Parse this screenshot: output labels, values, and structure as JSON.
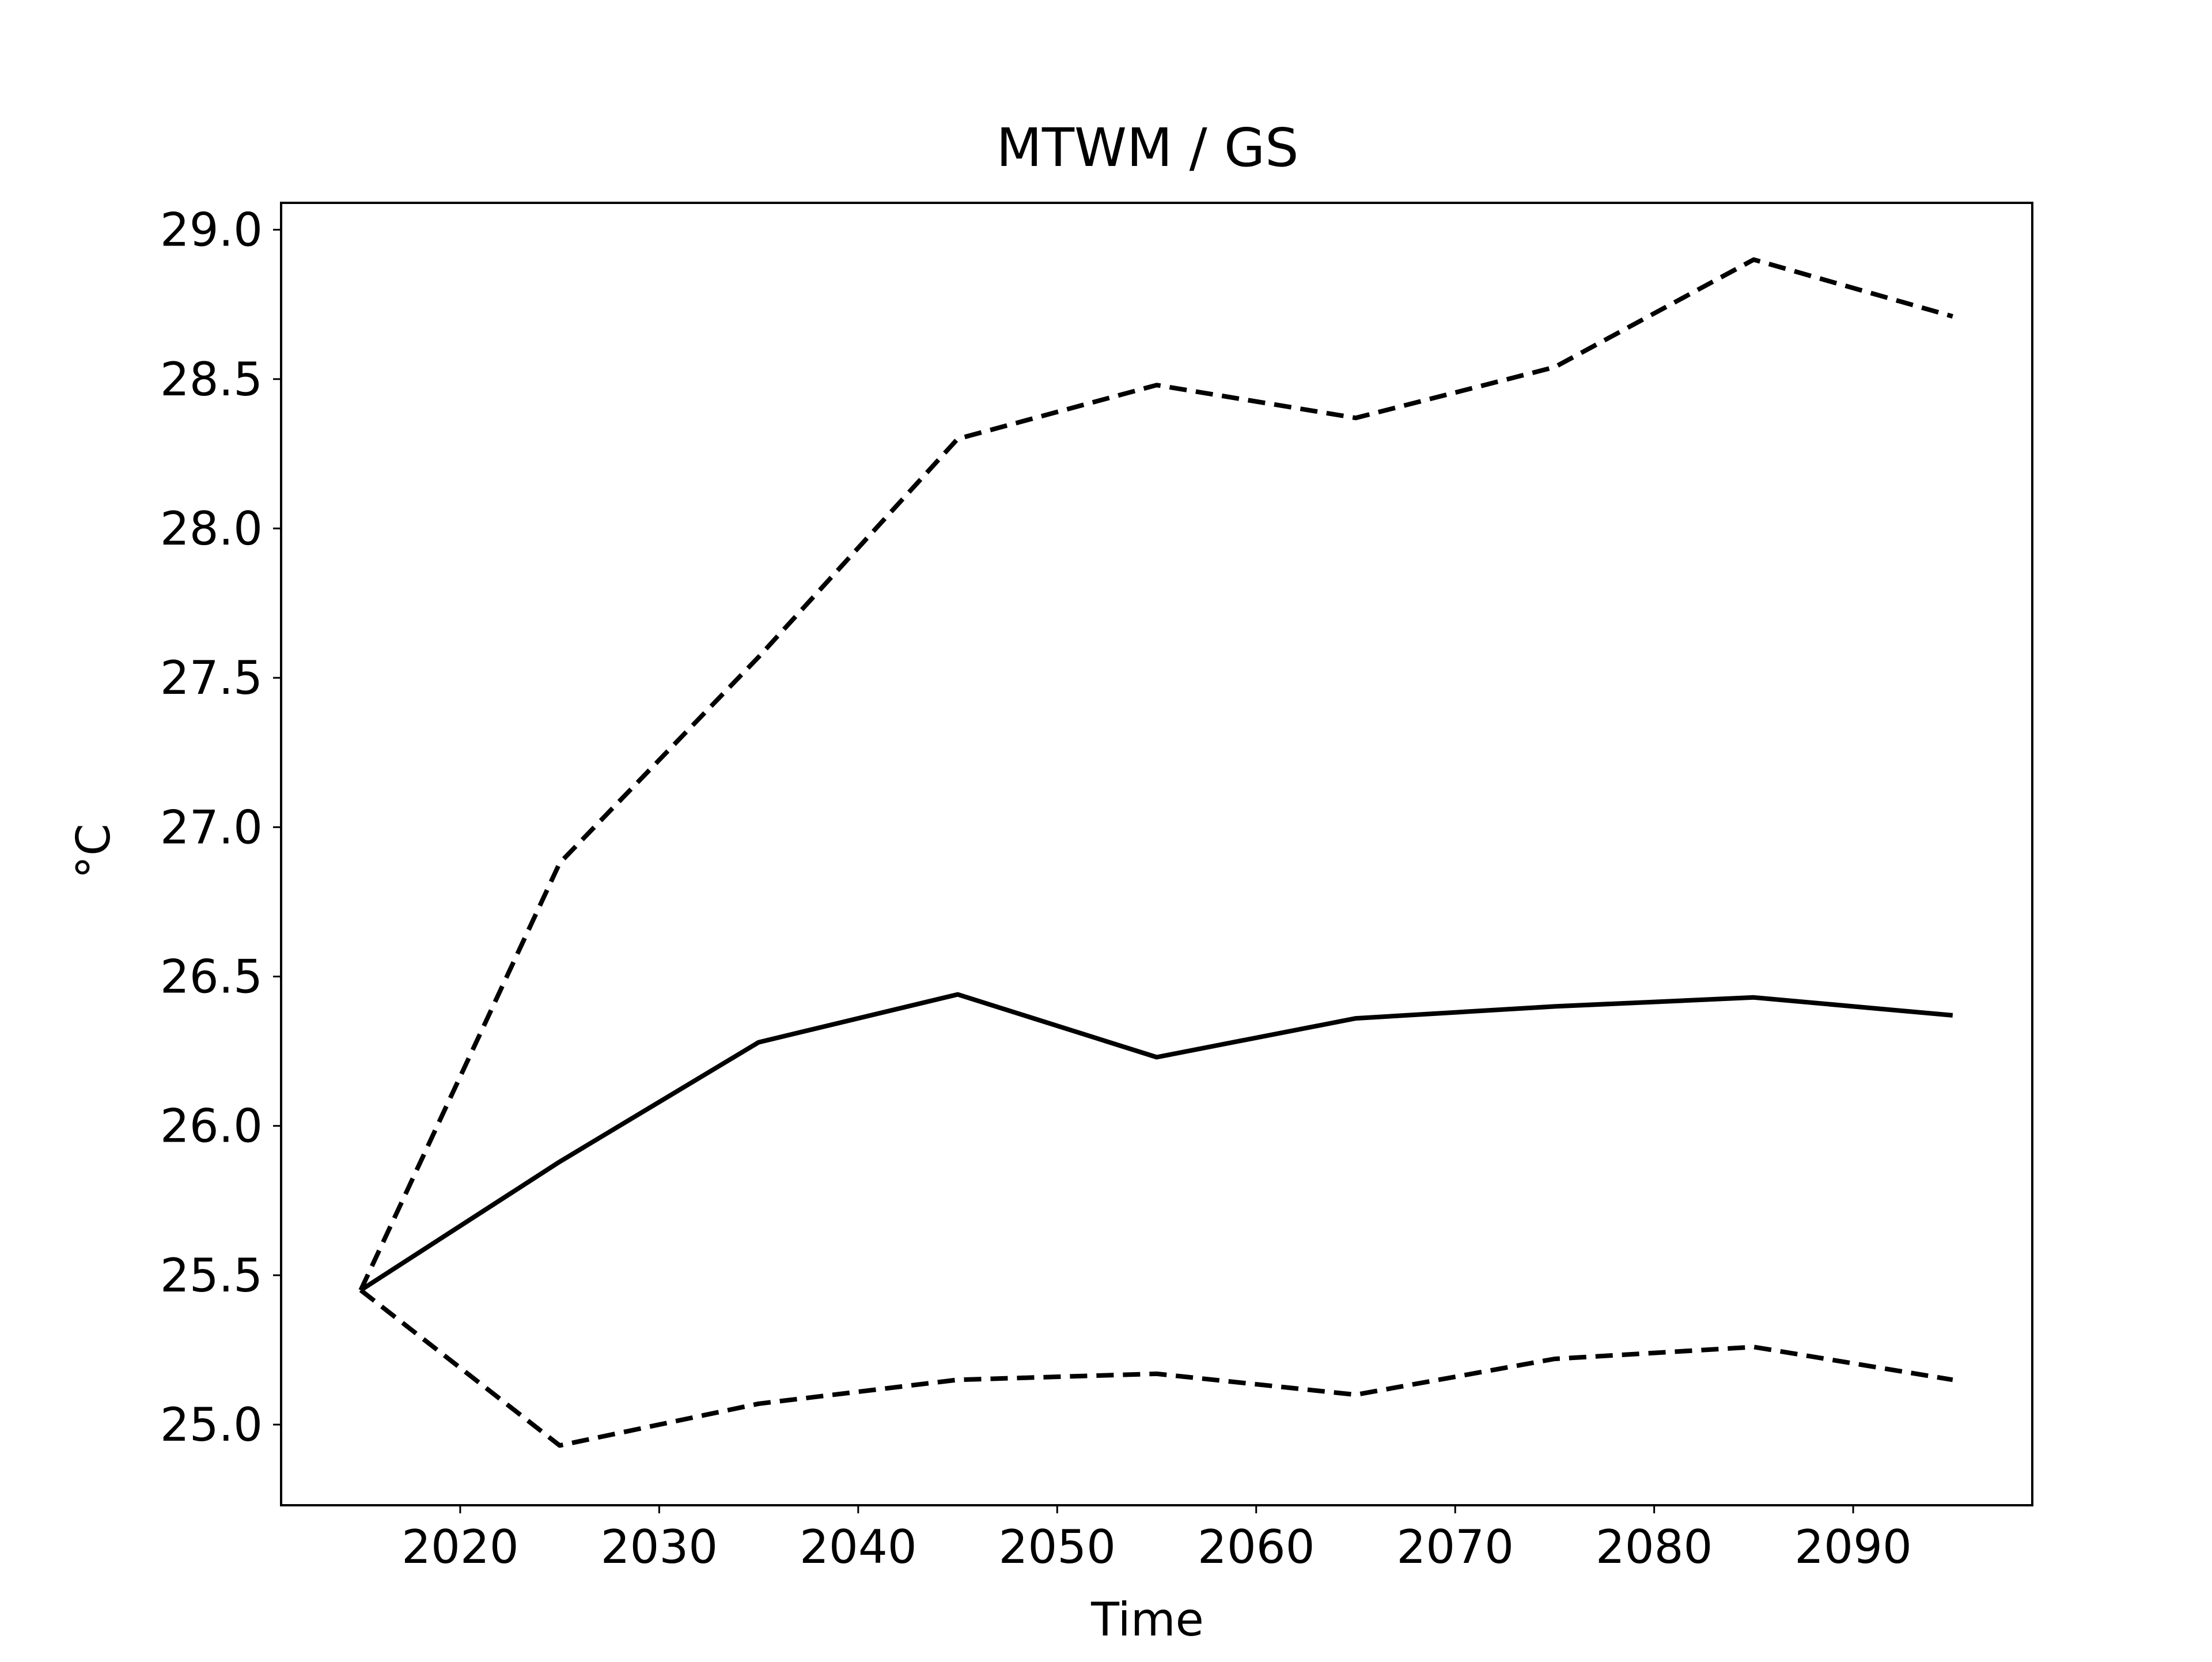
{
  "chart_data": {
    "type": "line",
    "title": "MTWM / GS",
    "xlabel": "Time",
    "ylabel": "°C",
    "x": [
      2015,
      2025,
      2035,
      2045,
      2055,
      2065,
      2075,
      2085,
      2095
    ],
    "xlim": [
      2011,
      2099
    ],
    "ylim": [
      24.73,
      29.09
    ],
    "xticks": [
      2020,
      2030,
      2040,
      2050,
      2060,
      2070,
      2080,
      2090
    ],
    "xtick_labels": [
      "2020",
      "2030",
      "2040",
      "2050",
      "2060",
      "2070",
      "2080",
      "2090"
    ],
    "yticks": [
      25.0,
      25.5,
      26.0,
      26.5,
      27.0,
      27.5,
      28.0,
      28.5,
      29.0
    ],
    "ytick_labels": [
      "25.0",
      "25.5",
      "26.0",
      "26.5",
      "27.0",
      "27.5",
      "28.0",
      "28.5",
      "29.0"
    ],
    "grid": false,
    "legend": "none",
    "series": [
      {
        "style": "solid",
        "color": "#000000",
        "values": [
          25.45,
          25.88,
          26.28,
          26.44,
          26.23,
          26.36,
          26.4,
          26.43,
          26.37
        ]
      },
      {
        "style": "dashed",
        "color": "#000000",
        "values": [
          25.45,
          26.88,
          27.57,
          28.3,
          28.48,
          28.37,
          28.54,
          28.9,
          28.71
        ]
      },
      {
        "style": "dashed",
        "color": "#000000",
        "values": [
          25.45,
          24.93,
          25.07,
          25.15,
          25.17,
          25.1,
          25.22,
          25.26,
          25.15
        ]
      }
    ]
  }
}
